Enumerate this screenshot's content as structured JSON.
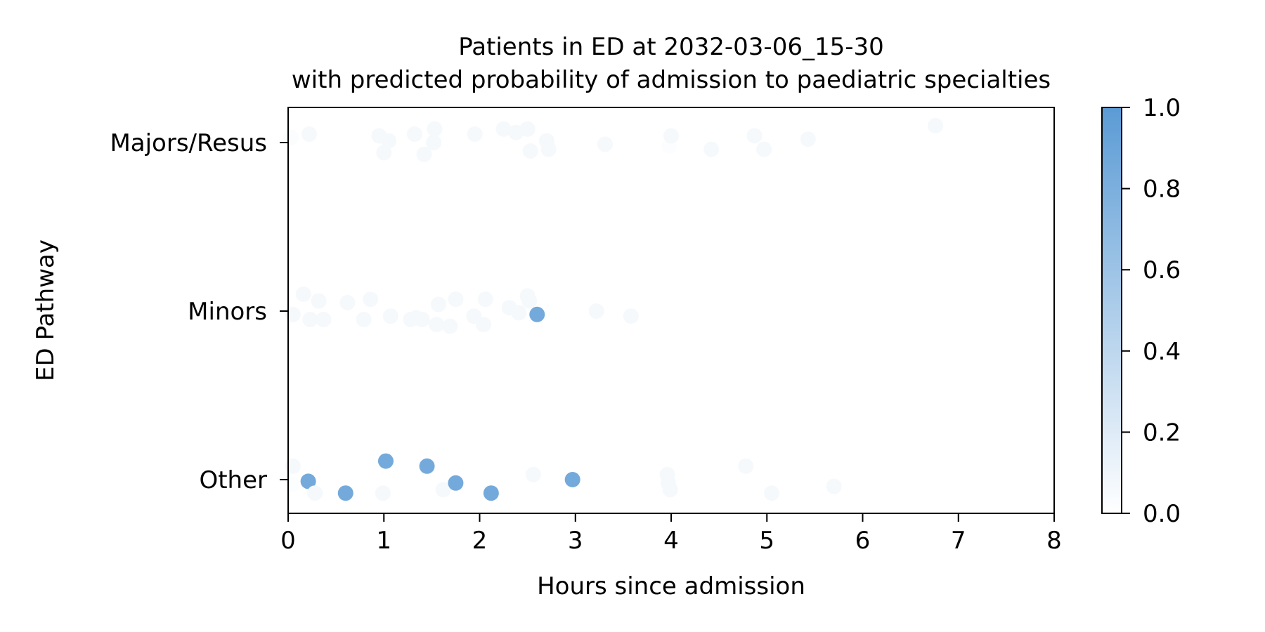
{
  "chart_data": {
    "type": "scatter",
    "title": "Patients in ED at 2032-03-06_15-30",
    "subtitle": "with predicted probability of admission to paediatric specialties",
    "xlabel": "Hours since admission",
    "ylabel": "ED Pathway",
    "xlim": [
      0,
      8
    ],
    "x_ticks": [
      0,
      1,
      2,
      3,
      4,
      5,
      6,
      7,
      8
    ],
    "categories": [
      "Majors/Resus",
      "Minors",
      "Other"
    ],
    "grid": false,
    "colorbar": {
      "ticks": [
        0.0,
        0.2,
        0.4,
        0.6,
        0.8,
        1.0
      ],
      "tick_labels": [
        "0.0",
        "0.2",
        "0.4",
        "0.6",
        "0.8",
        "1.0"
      ],
      "color_low": "#ffffff",
      "color_high": "#5b9bd5"
    },
    "points": [
      {
        "category": "Majors/Resus",
        "x": 0.03,
        "jitter": 0.03,
        "p": 0.03
      },
      {
        "category": "Majors/Resus",
        "x": 0.22,
        "jitter": 0.05,
        "p": 0.06
      },
      {
        "category": "Majors/Resus",
        "x": 0.95,
        "jitter": 0.04,
        "p": 0.06
      },
      {
        "category": "Majors/Resus",
        "x": 1.05,
        "jitter": 0.01,
        "p": 0.06
      },
      {
        "category": "Majors/Resus",
        "x": 1.0,
        "jitter": -0.06,
        "p": 0.06
      },
      {
        "category": "Majors/Resus",
        "x": 1.32,
        "jitter": 0.05,
        "p": 0.06
      },
      {
        "category": "Majors/Resus",
        "x": 1.42,
        "jitter": -0.07,
        "p": 0.06
      },
      {
        "category": "Majors/Resus",
        "x": 1.52,
        "jitter": 0.0,
        "p": 0.06
      },
      {
        "category": "Majors/Resus",
        "x": 1.53,
        "jitter": 0.08,
        "p": 0.06
      },
      {
        "category": "Majors/Resus",
        "x": 1.95,
        "jitter": 0.05,
        "p": 0.06
      },
      {
        "category": "Majors/Resus",
        "x": 2.25,
        "jitter": 0.08,
        "p": 0.06
      },
      {
        "category": "Majors/Resus",
        "x": 2.38,
        "jitter": 0.06,
        "p": 0.06
      },
      {
        "category": "Majors/Resus",
        "x": 2.5,
        "jitter": 0.08,
        "p": 0.06
      },
      {
        "category": "Majors/Resus",
        "x": 2.53,
        "jitter": -0.05,
        "p": 0.06
      },
      {
        "category": "Majors/Resus",
        "x": 2.7,
        "jitter": 0.01,
        "p": 0.06
      },
      {
        "category": "Majors/Resus",
        "x": 2.72,
        "jitter": -0.04,
        "p": 0.06
      },
      {
        "category": "Majors/Resus",
        "x": 3.31,
        "jitter": -0.01,
        "p": 0.06
      },
      {
        "category": "Majors/Resus",
        "x": 3.98,
        "jitter": -0.02,
        "p": 0.02
      },
      {
        "category": "Majors/Resus",
        "x": 4.0,
        "jitter": 0.04,
        "p": 0.06
      },
      {
        "category": "Majors/Resus",
        "x": 4.42,
        "jitter": -0.04,
        "p": 0.06
      },
      {
        "category": "Majors/Resus",
        "x": 4.87,
        "jitter": 0.04,
        "p": 0.06
      },
      {
        "category": "Majors/Resus",
        "x": 4.97,
        "jitter": -0.04,
        "p": 0.06
      },
      {
        "category": "Majors/Resus",
        "x": 5.43,
        "jitter": 0.02,
        "p": 0.06
      },
      {
        "category": "Majors/Resus",
        "x": 6.76,
        "jitter": 0.1,
        "p": 0.06
      },
      {
        "category": "Minors",
        "x": 0.05,
        "jitter": -0.02,
        "p": 0.06
      },
      {
        "category": "Minors",
        "x": 0.16,
        "jitter": 0.1,
        "p": 0.06
      },
      {
        "category": "Minors",
        "x": 0.23,
        "jitter": -0.05,
        "p": 0.06
      },
      {
        "category": "Minors",
        "x": 0.32,
        "jitter": 0.06,
        "p": 0.06
      },
      {
        "category": "Minors",
        "x": 0.37,
        "jitter": -0.05,
        "p": 0.06
      },
      {
        "category": "Minors",
        "x": 0.62,
        "jitter": 0.05,
        "p": 0.06
      },
      {
        "category": "Minors",
        "x": 0.79,
        "jitter": -0.05,
        "p": 0.06
      },
      {
        "category": "Minors",
        "x": 0.86,
        "jitter": 0.07,
        "p": 0.06
      },
      {
        "category": "Minors",
        "x": 1.07,
        "jitter": -0.03,
        "p": 0.06
      },
      {
        "category": "Minors",
        "x": 1.28,
        "jitter": -0.05,
        "p": 0.06
      },
      {
        "category": "Minors",
        "x": 1.34,
        "jitter": -0.04,
        "p": 0.06
      },
      {
        "category": "Minors",
        "x": 1.4,
        "jitter": -0.05,
        "p": 0.06
      },
      {
        "category": "Minors",
        "x": 1.55,
        "jitter": -0.08,
        "p": 0.06
      },
      {
        "category": "Minors",
        "x": 1.57,
        "jitter": 0.04,
        "p": 0.06
      },
      {
        "category": "Minors",
        "x": 1.69,
        "jitter": -0.09,
        "p": 0.06
      },
      {
        "category": "Minors",
        "x": 1.75,
        "jitter": 0.07,
        "p": 0.06
      },
      {
        "category": "Minors",
        "x": 1.94,
        "jitter": -0.03,
        "p": 0.06
      },
      {
        "category": "Minors",
        "x": 2.04,
        "jitter": -0.08,
        "p": 0.06
      },
      {
        "category": "Minors",
        "x": 2.06,
        "jitter": 0.07,
        "p": 0.06
      },
      {
        "category": "Minors",
        "x": 2.31,
        "jitter": 0.02,
        "p": 0.06
      },
      {
        "category": "Minors",
        "x": 2.41,
        "jitter": -0.01,
        "p": 0.06
      },
      {
        "category": "Minors",
        "x": 2.5,
        "jitter": 0.09,
        "p": 0.06
      },
      {
        "category": "Minors",
        "x": 2.52,
        "jitter": 0.06,
        "p": 0.06
      },
      {
        "category": "Minors",
        "x": 2.6,
        "jitter": -0.02,
        "p": 0.85
      },
      {
        "category": "Minors",
        "x": 3.22,
        "jitter": 0.0,
        "p": 0.06
      },
      {
        "category": "Minors",
        "x": 3.58,
        "jitter": -0.03,
        "p": 0.06
      },
      {
        "category": "Other",
        "x": 0.05,
        "jitter": 0.08,
        "p": 0.06
      },
      {
        "category": "Other",
        "x": 0.04,
        "jitter": -0.03,
        "p": 0.02
      },
      {
        "category": "Other",
        "x": 0.21,
        "jitter": -0.01,
        "p": 0.85
      },
      {
        "category": "Other",
        "x": 0.28,
        "jitter": -0.08,
        "p": 0.06
      },
      {
        "category": "Other",
        "x": 0.6,
        "jitter": -0.08,
        "p": 0.85
      },
      {
        "category": "Other",
        "x": 0.99,
        "jitter": -0.08,
        "p": 0.06
      },
      {
        "category": "Other",
        "x": 1.02,
        "jitter": 0.11,
        "p": 0.85
      },
      {
        "category": "Other",
        "x": 1.45,
        "jitter": 0.08,
        "p": 0.85
      },
      {
        "category": "Other",
        "x": 1.62,
        "jitter": -0.06,
        "p": 0.06
      },
      {
        "category": "Other",
        "x": 1.75,
        "jitter": -0.02,
        "p": 0.85
      },
      {
        "category": "Other",
        "x": 2.12,
        "jitter": -0.08,
        "p": 0.85
      },
      {
        "category": "Other",
        "x": 2.56,
        "jitter": 0.03,
        "p": 0.06
      },
      {
        "category": "Other",
        "x": 2.97,
        "jitter": 0.0,
        "p": 0.85
      },
      {
        "category": "Other",
        "x": 3.96,
        "jitter": 0.03,
        "p": 0.06
      },
      {
        "category": "Other",
        "x": 3.97,
        "jitter": -0.02,
        "p": 0.06
      },
      {
        "category": "Other",
        "x": 3.99,
        "jitter": -0.06,
        "p": 0.06
      },
      {
        "category": "Other",
        "x": 4.78,
        "jitter": 0.08,
        "p": 0.06
      },
      {
        "category": "Other",
        "x": 5.05,
        "jitter": -0.08,
        "p": 0.06
      },
      {
        "category": "Other",
        "x": 5.7,
        "jitter": -0.04,
        "p": 0.06
      }
    ]
  }
}
